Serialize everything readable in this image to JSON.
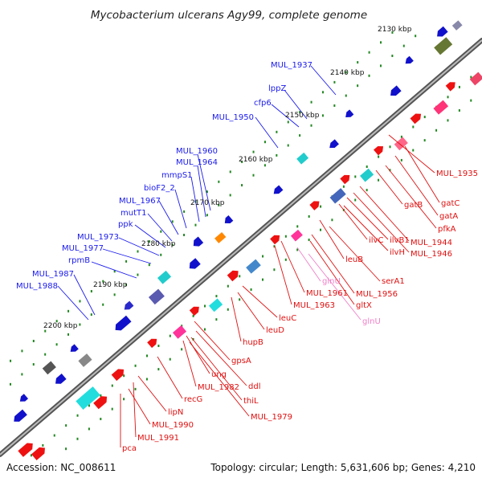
{
  "title": "Mycobacterium ulcerans Agy99, complete genome",
  "footer": {
    "accession": "Accession: NC_008611",
    "summary": "Topology: circular; Length: 5,631,606 bp; Genes: 4,210"
  },
  "colors": {
    "backbone": "#888888",
    "forward_gene": "#ee1111",
    "reverse_gene": "#1111ee",
    "forward_label": "#e01010",
    "reverse_label": "#1a1aee",
    "pseudo_label": "#f080c8",
    "cds_match": "#22cccc",
    "tick_dots": "#228822"
  },
  "kbp_ticks": [
    "2130 kbp",
    "2140 kbp",
    "2150 kbp",
    "2160 kbp",
    "2170 kbp",
    "2180 kbp",
    "2190 kbp",
    "2200 kbp"
  ],
  "reverse_labels": [
    "MUL_1937",
    "lppZ",
    "cfp6",
    "MUL_1950",
    "MUL_1960",
    "MUL_1964",
    "mmpS1",
    "bioF2_2",
    "MUL_1967",
    "mutT1",
    "ppk",
    "MUL_1973",
    "MUL_1977",
    "rpmB",
    "MUL_1987",
    "MUL_1988"
  ],
  "forward_labels": [
    "MUL_1935",
    "gatC",
    "gatA",
    "pfkA",
    "gatB",
    "MUL_1944",
    "MUL_1946",
    "ilvB1",
    "ilvC",
    "ilvH",
    "leuB",
    "serA1",
    "MUL_1956",
    "MUL_1961",
    "MUL_1963",
    "gltX",
    "leuC",
    "leuD",
    "hupB",
    "gpsA",
    "ddl",
    "thiL",
    "ung",
    "MUL_1982",
    "MUL_1979",
    "recG",
    "lipN",
    "MUL_1990",
    "MUL_1991",
    "pca"
  ],
  "pseudo_labels": [
    "glnU",
    "glnU"
  ]
}
